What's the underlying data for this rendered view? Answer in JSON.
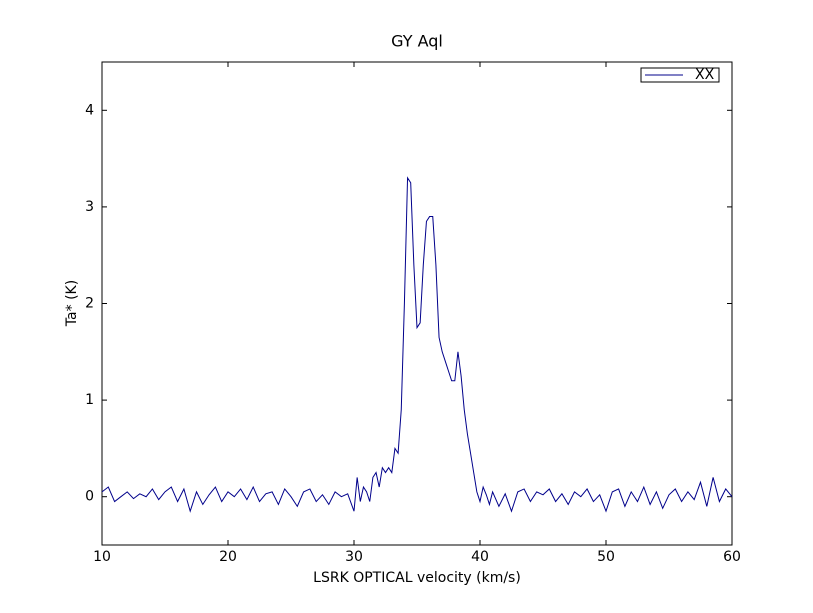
{
  "chart_data": {
    "type": "line",
    "title": "GY Aql",
    "xlabel": "LSRK OPTICAL velocity (km/s)",
    "ylabel": "Ta* (K)",
    "x": [
      10,
      10.5,
      11,
      11.5,
      12,
      12.5,
      13,
      13.5,
      14,
      14.5,
      15,
      15.5,
      16,
      16.5,
      17,
      17.5,
      18,
      18.5,
      19,
      19.5,
      20,
      20.5,
      21,
      21.5,
      22,
      22.5,
      23,
      23.5,
      24,
      24.5,
      25,
      25.5,
      26,
      26.5,
      27,
      27.5,
      28,
      28.5,
      29,
      29.5,
      30,
      30.25,
      30.5,
      30.75,
      31,
      31.25,
      31.5,
      31.75,
      32,
      32.25,
      32.5,
      32.75,
      33,
      33.25,
      33.5,
      33.75,
      34,
      34.25,
      34.5,
      34.75,
      35,
      35.25,
      35.5,
      35.75,
      36,
      36.25,
      36.5,
      36.75,
      37,
      37.25,
      37.5,
      37.75,
      38,
      38.25,
      38.5,
      38.75,
      39,
      39.25,
      39.5,
      39.75,
      40,
      40.25,
      40.5,
      40.75,
      41,
      41.5,
      42,
      42.5,
      43,
      43.5,
      44,
      44.5,
      45,
      45.5,
      46,
      46.5,
      47,
      47.5,
      48,
      48.5,
      49,
      49.5,
      50,
      50.5,
      51,
      51.5,
      52,
      52.5,
      53,
      53.5,
      54,
      54.5,
      55,
      55.5,
      56,
      56.5,
      57,
      57.5,
      58,
      58.5,
      59,
      59.5,
      60
    ],
    "series": [
      {
        "name": "XX",
        "color": "#00008b",
        "values": [
          0.05,
          0.1,
          -0.05,
          0,
          0.05,
          -0.02,
          0.03,
          0,
          0.08,
          -0.03,
          0.05,
          0.1,
          -0.05,
          0.08,
          -0.15,
          0.05,
          -0.08,
          0.02,
          0.1,
          -0.05,
          0.05,
          0,
          0.08,
          -0.03,
          0.1,
          -0.05,
          0.03,
          0.05,
          -0.08,
          0.08,
          0,
          -0.1,
          0.05,
          0.08,
          -0.05,
          0.02,
          -0.08,
          0.05,
          0,
          0.03,
          -0.15,
          0.2,
          -0.05,
          0.1,
          0.05,
          -0.05,
          0.2,
          0.25,
          0.1,
          0.3,
          0.25,
          0.3,
          0.25,
          0.5,
          0.45,
          0.9,
          2.0,
          3.3,
          3.25,
          2.4,
          1.75,
          1.8,
          2.4,
          2.85,
          2.9,
          2.9,
          2.4,
          1.65,
          1.5,
          1.4,
          1.3,
          1.2,
          1.2,
          1.5,
          1.25,
          0.9,
          0.65,
          0.45,
          0.25,
          0.05,
          -0.05,
          0.1,
          0.02,
          -0.08,
          0.05,
          -0.1,
          0.03,
          -0.15,
          0.05,
          0.08,
          -0.05,
          0.05,
          0.02,
          0.08,
          -0.05,
          0.03,
          -0.08,
          0.05,
          0,
          0.08,
          -0.05,
          0.02,
          -0.15,
          0.05,
          0.08,
          -0.1,
          0.05,
          -0.05,
          0.1,
          -0.08,
          0.05,
          -0.12,
          0.02,
          0.08,
          -0.05,
          0.05,
          -0.03,
          0.15,
          -0.1,
          0.2,
          -0.05,
          0.08,
          0
        ]
      }
    ],
    "xlim": [
      10,
      60
    ],
    "xticks": [
      10,
      20,
      30,
      40,
      50,
      60
    ],
    "ylim": [
      -0.5,
      4.5
    ],
    "yticks": [
      0,
      1,
      2,
      3,
      4
    ],
    "grid": false,
    "legend": "upper right"
  }
}
